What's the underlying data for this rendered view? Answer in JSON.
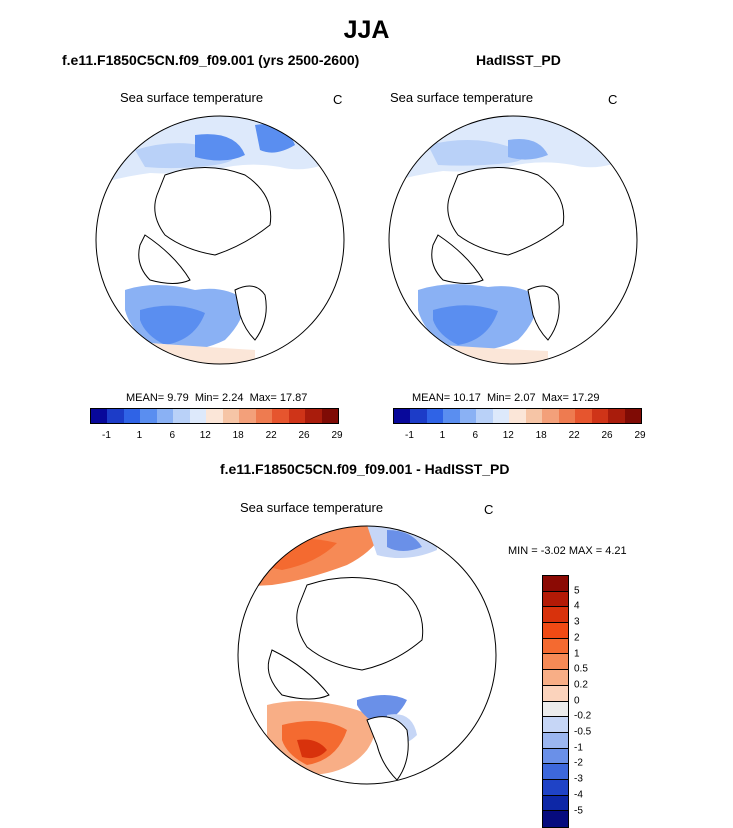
{
  "title": "JJA",
  "panel_left": {
    "header": "f.e11.F1850C5CN.f09_f09.001 (yrs 2500-2600)",
    "variable": "Sea surface temperature",
    "unit": "C",
    "stats": {
      "mean_label": "MEAN=",
      "mean": "9.79",
      "min_label": "Min=",
      "min": "2.24",
      "max_label": "Max=",
      "max": "17.87"
    }
  },
  "panel_right": {
    "header": "HadISST_PD",
    "variable": "Sea surface temperature",
    "unit": "C",
    "stats": {
      "mean_label": "MEAN=",
      "mean": "10.17",
      "min_label": "Min=",
      "min": "2.07",
      "max_label": "Max=",
      "max": "17.29"
    }
  },
  "colorbar_top": {
    "tick_labels": [
      "-1",
      "1",
      "6",
      "12",
      "18",
      "22",
      "26",
      "29"
    ],
    "colors": [
      "#08089a",
      "#1c3cc8",
      "#2f63e6",
      "#5a8ef0",
      "#8ab1f4",
      "#b9d1f8",
      "#dde9fb",
      "#fbe6d8",
      "#f6c5a6",
      "#f3a07a",
      "#ee7b50",
      "#e6552e",
      "#cf3418",
      "#a91c0c",
      "#7f0b05"
    ]
  },
  "panel_diff": {
    "header": "f.e11.F1850C5CN.f09_f09.001 - HadISST_PD",
    "variable": "Sea surface temperature",
    "unit": "C",
    "min_max": "MIN =  -3.02 MAX =   4.21"
  },
  "colorbar_diff": {
    "labels": [
      "5",
      "4",
      "3",
      "2",
      "1",
      "0.5",
      "0.2",
      "0",
      "-0.2",
      "-0.5",
      "-1",
      "-2",
      "-3",
      "-4",
      "-5"
    ],
    "colors": [
      "#8b0a04",
      "#b31a06",
      "#d8320c",
      "#f04a14",
      "#f46a30",
      "#f68a56",
      "#f8ae86",
      "#fbd3bc",
      "#ececec",
      "#c6d6f6",
      "#9bb6f0",
      "#6a90e8",
      "#3d68dc",
      "#1f43c6",
      "#0d27a6",
      "#060b7e"
    ]
  },
  "legend_colors": {
    "land": "#ffffff",
    "coast": "#000000",
    "sst_warm": "#dde9fb",
    "sst_mid": "#b9d1f8",
    "sst_cool": "#8ab1f4",
    "sst_peach": "#fbe6d8",
    "diff_warm": "#f46a30",
    "diff_light_warm": "#f8ae86",
    "diff_cool": "#6a90e8",
    "diff_light_cool": "#c6d6f6"
  }
}
